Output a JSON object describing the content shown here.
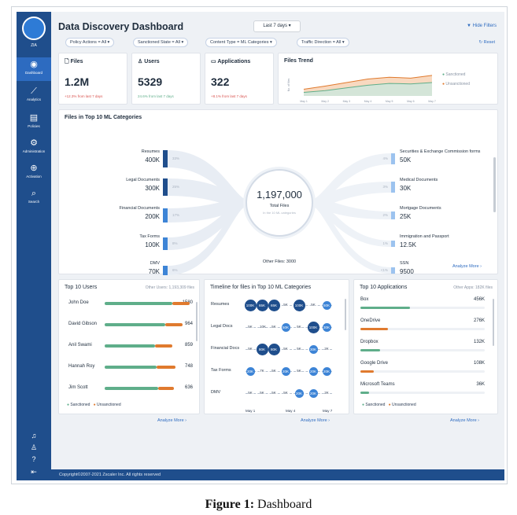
{
  "sidebar": {
    "logo_label": "ZIA",
    "items": [
      {
        "label": "Dashboard",
        "icon": "gauge-icon"
      },
      {
        "label": "Analytics",
        "icon": "chart-icon"
      },
      {
        "label": "Policies",
        "icon": "policy-icon"
      },
      {
        "label": "Administration",
        "icon": "admin-icon"
      },
      {
        "label": "Activation",
        "icon": "activation-icon"
      },
      {
        "label": "Search",
        "icon": "search-icon"
      }
    ]
  },
  "header": {
    "title": "Data Discovery Dashboard",
    "date_range": "Last 7 days",
    "hide_filters": "Hide Filters",
    "reset": "Reset"
  },
  "filters": [
    "Policy Actions = All",
    "Sanctioned State = All",
    "Content Type = ML Categories",
    "Traffic Direction = All"
  ],
  "summary": {
    "files": {
      "title": "Files",
      "value": "1.2M",
      "delta": "+12.3% from last 7 days"
    },
    "users": {
      "title": "Users",
      "value": "5329",
      "delta": "24.6% from last 7 days"
    },
    "apps": {
      "title": "Applications",
      "value": "322",
      "delta": "+8.1% from last 7 days"
    }
  },
  "trend": {
    "title": "Files Trend",
    "ylabel": "No. of files",
    "x": [
      "May 1",
      "May 2",
      "May 3",
      "May 4",
      "May 5",
      "May 6",
      "May 7"
    ],
    "sanctioned": [
      15,
      22,
      30,
      38,
      42,
      40,
      46
    ],
    "unsanctioned": [
      8,
      12,
      18,
      24,
      28,
      27,
      30
    ],
    "legend": [
      "Sanctioned",
      "Unsanctioned"
    ]
  },
  "ml": {
    "title": "Files in Top 10 ML Categories",
    "total": "1,197,000",
    "total_label": "Total Files",
    "total_sub": "In the 10 ML categories",
    "other": "Other Files: 3000",
    "analyze": "Analyze More",
    "left": [
      {
        "name": "Resumes",
        "value": "400K",
        "pct": "33%"
      },
      {
        "name": "Legal Documents",
        "value": "300K",
        "pct": "25%"
      },
      {
        "name": "Financial Documents",
        "value": "200K",
        "pct": "17%"
      },
      {
        "name": "Tax Forms",
        "value": "100K",
        "pct": "8%"
      },
      {
        "name": "DMV",
        "value": "70K",
        "pct": "6%"
      }
    ],
    "right": [
      {
        "name": "Securities & Exchange Commission forms",
        "value": "50K",
        "pct": "4%"
      },
      {
        "name": "Medical Documents",
        "value": "30K",
        "pct": "3%"
      },
      {
        "name": "Mortgage Documents",
        "value": "25K",
        "pct": "2%"
      },
      {
        "name": "Immigration and Passport",
        "value": "12.5K",
        "pct": "1%"
      },
      {
        "name": "SSN",
        "value": "9500",
        "pct": "<1%"
      }
    ]
  },
  "top_users": {
    "title": "Top 10 Users",
    "other": "Other Users: 1,193,309 files",
    "legend": [
      "Sanctioned",
      "Unsanctioned"
    ],
    "analyze": "Analyze More",
    "rows": [
      {
        "name": "John Doe",
        "value": "1580",
        "sanctioned": 0.78,
        "unsanctioned": 0.2
      },
      {
        "name": "David Gibson",
        "value": "964",
        "sanctioned": 0.7,
        "unsanctioned": 0.2
      },
      {
        "name": "Anil Swami",
        "value": "859",
        "sanctioned": 0.58,
        "unsanctioned": 0.2
      },
      {
        "name": "Hannah Roy",
        "value": "748",
        "sanctioned": 0.6,
        "unsanctioned": 0.22
      },
      {
        "name": "Jim Scott",
        "value": "636",
        "sanctioned": 0.62,
        "unsanctioned": 0.18
      }
    ]
  },
  "timeline": {
    "title": "Timeline for files in Top 10 ML Categories",
    "analyze": "Analyze More",
    "x": [
      "May 1",
      "May 4",
      "May 7"
    ],
    "rows": [
      {
        "name": "Resumes",
        "points": [
          "100K",
          "65K",
          "65K",
          "5K",
          "100K",
          "5K",
          "50K"
        ]
      },
      {
        "name": "Legal Docs",
        "points": [
          "5K",
          "10K",
          "5K",
          "50K",
          "5K",
          "100K",
          "30K"
        ]
      },
      {
        "name": "Financial Docs",
        "points": [
          "5K",
          "80K",
          "80K",
          "5K",
          "5K",
          "30K",
          "2K"
        ]
      },
      {
        "name": "Tax Forms",
        "points": [
          "20K",
          "7K",
          "5K",
          "20K",
          "5K",
          "20K",
          "20K"
        ]
      },
      {
        "name": "DMV",
        "points": [
          "5K",
          "5K",
          "5K",
          "5K",
          "20K",
          "20K",
          "2K"
        ]
      }
    ]
  },
  "top_apps": {
    "title": "Top 10 Applications",
    "other": "Other Apps: 182K files",
    "legend": [
      "Sanctioned",
      "Unsanctioned"
    ],
    "analyze": "Analyze More",
    "rows": [
      {
        "name": "Box",
        "value": "456K",
        "fill": 0.4,
        "color": "#5fae8a"
      },
      {
        "name": "OneDrive",
        "value": "276K",
        "fill": 0.22,
        "color": "#e07a2e"
      },
      {
        "name": "Dropbox",
        "value": "132K",
        "fill": 0.16,
        "color": "#5fae8a"
      },
      {
        "name": "Google Drive",
        "value": "108K",
        "fill": 0.11,
        "color": "#e07a2e"
      },
      {
        "name": "Microsoft Teams",
        "value": "36K",
        "fill": 0.07,
        "color": "#5fae8a"
      }
    ]
  },
  "footer": "Copyright©2007-2021 Zscaler Inc. All rights reserved",
  "caption": {
    "bold": "Figure 1:",
    "text": " Dashboard"
  },
  "colors": {
    "sidebar": "#1f4e8c",
    "sanctioned": "#5fae8a",
    "unsanctioned": "#e07a2e",
    "accent": "#2d6bc0"
  }
}
